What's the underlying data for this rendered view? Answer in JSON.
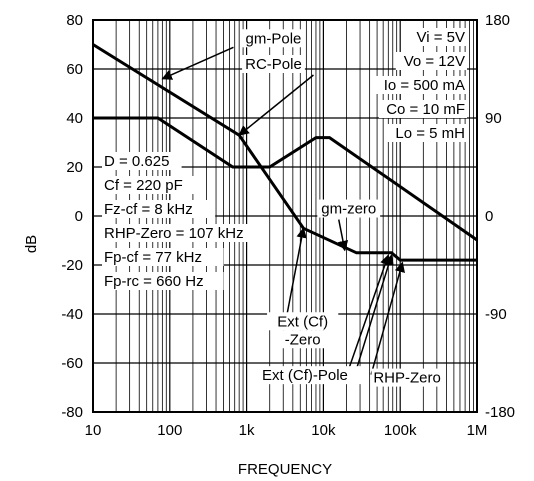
{
  "chart_data": {
    "type": "line",
    "xlabel": "FREQUENCY",
    "ylabel": "dB",
    "x_scale": "log",
    "xlim": [
      10,
      1000000
    ],
    "ylim": [
      -80,
      80
    ],
    "y2lim": [
      -180,
      180
    ],
    "grid": true,
    "x_ticks": [
      {
        "value": 10,
        "label": "10"
      },
      {
        "value": 100,
        "label": "100"
      },
      {
        "value": 1000,
        "label": "1k"
      },
      {
        "value": 10000,
        "label": "10k"
      },
      {
        "value": 100000,
        "label": "100k"
      },
      {
        "value": 1000000,
        "label": "1M"
      }
    ],
    "y_ticks": [
      {
        "value": 80,
        "label": "80"
      },
      {
        "value": 60,
        "label": "60"
      },
      {
        "value": 40,
        "label": "40"
      },
      {
        "value": 20,
        "label": "20"
      },
      {
        "value": 0,
        "label": "0"
      },
      {
        "value": -20,
        "label": "-20"
      },
      {
        "value": -40,
        "label": "-40"
      },
      {
        "value": -60,
        "label": "-60"
      },
      {
        "value": -80,
        "label": "-80"
      }
    ],
    "y2_ticks": [
      {
        "value": 180,
        "label": "180"
      },
      {
        "value": 90,
        "label": "90"
      },
      {
        "value": 0,
        "label": "0"
      },
      {
        "value": -90,
        "label": "-90"
      },
      {
        "value": -180,
        "label": "-180"
      }
    ],
    "series": [
      {
        "axis": "left",
        "points": [
          [
            10,
            70
          ],
          [
            800,
            33
          ],
          [
            5500,
            -5
          ],
          [
            27000,
            -15
          ],
          [
            77000,
            -15
          ],
          [
            100000,
            -18
          ],
          [
            1000000,
            -18
          ]
        ]
      },
      {
        "axis": "right",
        "points": [
          [
            10,
            90
          ],
          [
            70,
            90
          ],
          [
            660,
            45
          ],
          [
            2000,
            45
          ],
          [
            8000,
            72
          ],
          [
            12000,
            72
          ],
          [
            1000000,
            -22
          ]
        ]
      }
    ],
    "annotations": [
      {
        "name": "gm-pole",
        "text": "gm-Pole",
        "tx": 3.35,
        "ty": 70.5,
        "ax": 80,
        "ay": 56
      },
      {
        "name": "rc-pole",
        "text": "RC-Pole",
        "tx": 3.35,
        "ty": 60,
        "ax": 800,
        "ay": 33
      },
      {
        "name": "gm-zero",
        "text": "gm-zero",
        "tx": 4.33,
        "ty": 1,
        "ax": 19000,
        "ay": -14
      },
      {
        "name": "ext-cf-zero",
        "text": "Ext (Cf)",
        "text2": "-Zero",
        "tx": 3.73,
        "ty": -45,
        "ax": 5500,
        "ay": -5
      },
      {
        "name": "ext-cf-pole",
        "text": "Ext (Cf)-Pole",
        "tx": 3.76,
        "ty": -67,
        "ax": 77000,
        "ay": -16
      },
      {
        "name": "rhp-zero-annot",
        "text": "RHP-Zero",
        "tx": 5.09,
        "ty": -68,
        "ax": 107000,
        "ay": -19
      }
    ],
    "params_right": [
      "Vi = 5V",
      "Vo = 12V",
      "Io = 500 mA",
      "Co = 10 mF",
      "Lo = 5 mH"
    ],
    "params_left": [
      "D = 0.625",
      "Cf = 220 pF",
      "Fz-cf = 8 kHz",
      "RHP-Zero = 107 kHz",
      "Fp-cf = 77 kHz",
      "Fp-rc = 660 Hz"
    ]
  }
}
